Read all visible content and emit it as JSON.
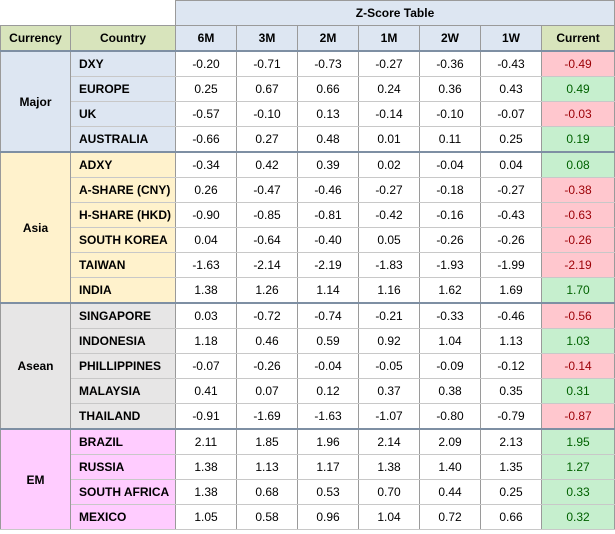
{
  "chart_data": {
    "type": "table",
    "title": "Z-Score Table",
    "header": {
      "currency": "Currency",
      "country": "Country",
      "current": "Current"
    },
    "periods": [
      "6M",
      "3M",
      "2M",
      "1M",
      "2W",
      "1W"
    ],
    "groups": [
      {
        "name": "Major",
        "color": "#dde6f2",
        "rows": [
          {
            "country": "DXY",
            "values": [
              "-0.20",
              "-0.71",
              "-0.73",
              "-0.27",
              "-0.36",
              "-0.43"
            ],
            "current": "-0.49"
          },
          {
            "country": "EUROPE",
            "values": [
              "0.25",
              "0.67",
              "0.66",
              "0.24",
              "0.36",
              "0.43"
            ],
            "current": "0.49"
          },
          {
            "country": "UK",
            "values": [
              "-0.57",
              "-0.10",
              "0.13",
              "-0.14",
              "-0.10",
              "-0.07"
            ],
            "current": "-0.03"
          },
          {
            "country": "AUSTRALIA",
            "values": [
              "-0.66",
              "0.27",
              "0.48",
              "0.01",
              "0.11",
              "0.25"
            ],
            "current": "0.19"
          }
        ]
      },
      {
        "name": "Asia",
        "color": "#fff2cc",
        "rows": [
          {
            "country": "ADXY",
            "values": [
              "-0.34",
              "0.42",
              "0.39",
              "0.02",
              "-0.04",
              "0.04"
            ],
            "current": "0.08"
          },
          {
            "country": "A-SHARE (CNY)",
            "values": [
              "0.26",
              "-0.47",
              "-0.46",
              "-0.27",
              "-0.18",
              "-0.27"
            ],
            "current": "-0.38"
          },
          {
            "country": "H-SHARE (HKD)",
            "values": [
              "-0.90",
              "-0.85",
              "-0.81",
              "-0.42",
              "-0.16",
              "-0.43"
            ],
            "current": "-0.63"
          },
          {
            "country": "SOUTH KOREA",
            "values": [
              "0.04",
              "-0.64",
              "-0.40",
              "0.05",
              "-0.26",
              "-0.26"
            ],
            "current": "-0.26"
          },
          {
            "country": "TAIWAN",
            "values": [
              "-1.63",
              "-2.14",
              "-2.19",
              "-1.83",
              "-1.93",
              "-1.99"
            ],
            "current": "-2.19"
          },
          {
            "country": "INDIA",
            "values": [
              "1.38",
              "1.26",
              "1.14",
              "1.16",
              "1.62",
              "1.69"
            ],
            "current": "1.70"
          }
        ]
      },
      {
        "name": "Asean",
        "color": "#e7e6e6",
        "rows": [
          {
            "country": "SINGAPORE",
            "values": [
              "0.03",
              "-0.72",
              "-0.74",
              "-0.21",
              "-0.33",
              "-0.46"
            ],
            "current": "-0.56"
          },
          {
            "country": "INDONESIA",
            "values": [
              "1.18",
              "0.46",
              "0.59",
              "0.92",
              "1.04",
              "1.13"
            ],
            "current": "1.03"
          },
          {
            "country": "PHILLIPPINES",
            "values": [
              "-0.07",
              "-0.26",
              "-0.04",
              "-0.05",
              "-0.09",
              "-0.12"
            ],
            "current": "-0.14"
          },
          {
            "country": "MALAYSIA",
            "values": [
              "0.41",
              "0.07",
              "0.12",
              "0.37",
              "0.38",
              "0.35"
            ],
            "current": "0.31"
          },
          {
            "country": "THAILAND",
            "values": [
              "-0.91",
              "-1.69",
              "-1.63",
              "-1.07",
              "-0.80",
              "-0.79"
            ],
            "current": "-0.87"
          }
        ]
      },
      {
        "name": "EM",
        "color": "#ffccff",
        "rows": [
          {
            "country": "BRAZIL",
            "values": [
              "2.11",
              "1.85",
              "1.96",
              "2.14",
              "2.09",
              "2.13"
            ],
            "current": "1.95"
          },
          {
            "country": "RUSSIA",
            "values": [
              "1.38",
              "1.13",
              "1.17",
              "1.38",
              "1.40",
              "1.35"
            ],
            "current": "1.27"
          },
          {
            "country": "SOUTH AFRICA",
            "values": [
              "1.38",
              "0.68",
              "0.53",
              "0.70",
              "0.44",
              "0.25"
            ],
            "current": "0.33"
          },
          {
            "country": "MEXICO",
            "values": [
              "1.05",
              "0.58",
              "0.96",
              "1.04",
              "0.72",
              "0.66"
            ],
            "current": "0.32"
          }
        ]
      }
    ],
    "colors": {
      "positive_bg": "#c6efce",
      "positive_text": "#006100",
      "negative_bg": "#ffc7ce",
      "negative_text": "#9c0006"
    }
  }
}
